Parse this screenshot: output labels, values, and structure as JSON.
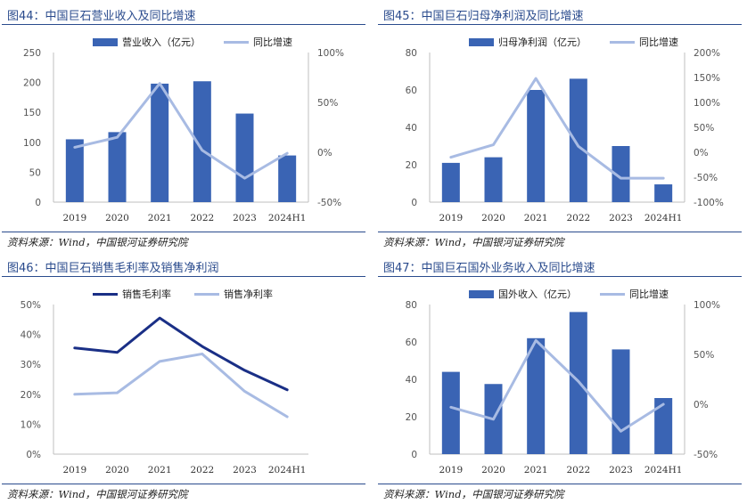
{
  "colors": {
    "bar": "#3a64b4",
    "line_light": "#a8bbe3",
    "line_dark": "#1a2f86",
    "title": "#2a4b8d"
  },
  "charts": [
    {
      "id": "c44",
      "title": "图44：中国巨石营业收入及同比增速",
      "source": "资料来源：Wind，中国银河证券研究院"
    },
    {
      "id": "c45",
      "title": "图45：中国巨石归母净利润及同比增速",
      "source": "资料来源：Wind，中国银河证券研究院"
    },
    {
      "id": "c46",
      "title": "图46：中国巨石销售毛利率及销售净利润",
      "source": "资料来源：Wind，中国银河证券研究院"
    },
    {
      "id": "c47",
      "title": "图47：中国巨石国外业务收入及同比增速",
      "source": "资料来源：Wind，中国银河证券研究院"
    }
  ],
  "chart_data": [
    {
      "type": "bar",
      "categories": [
        "2019",
        "2020",
        "2021",
        "2022",
        "2023",
        "2024H1"
      ],
      "series": [
        {
          "name": "营业收入（亿元）",
          "kind": "bar",
          "axis": "left",
          "values": [
            105,
            117,
            198,
            202,
            148,
            78
          ]
        },
        {
          "name": "同比增速",
          "kind": "line",
          "axis": "right",
          "values": [
            5,
            15,
            69,
            2,
            -26,
            -1
          ]
        }
      ],
      "ylim_left": [
        0,
        250
      ],
      "yticks_left": [
        "0",
        "50",
        "100",
        "150",
        "200",
        "250"
      ],
      "ylim_right": [
        -50,
        100
      ],
      "yticks_right": [
        "-50%",
        "0%",
        "50%",
        "100%"
      ],
      "grid": false,
      "legend": "top"
    },
    {
      "type": "bar",
      "categories": [
        "2019",
        "2020",
        "2021",
        "2022",
        "2023",
        "2024H1"
      ],
      "series": [
        {
          "name": "归母净利润（亿元）",
          "kind": "bar",
          "axis": "left",
          "values": [
            21,
            24,
            60,
            66,
            30,
            9.5
          ]
        },
        {
          "name": "同比增速",
          "kind": "line",
          "axis": "right",
          "values": [
            -10,
            15,
            148,
            12,
            -52,
            -52
          ]
        }
      ],
      "ylim_left": [
        0,
        80
      ],
      "yticks_left": [
        "0",
        "20",
        "40",
        "60",
        "80"
      ],
      "ylim_right": [
        -100,
        200
      ],
      "yticks_right": [
        "-100%",
        "-50%",
        "0%",
        "50%",
        "100%",
        "150%",
        "200%"
      ],
      "grid": false,
      "legend": "top"
    },
    {
      "type": "line",
      "categories": [
        "2019",
        "2020",
        "2021",
        "2022",
        "2023",
        "2024H1"
      ],
      "series": [
        {
          "name": "销售毛利率",
          "kind": "line",
          "style": "dark",
          "values": [
            35.5,
            34,
            45.5,
            36,
            28,
            21.5
          ]
        },
        {
          "name": "销售净利率",
          "kind": "line",
          "style": "light",
          "values": [
            20,
            20.5,
            31,
            33.5,
            21,
            12.5
          ]
        }
      ],
      "ylim": [
        0,
        50
      ],
      "yticks": [
        "0%",
        "10%",
        "20%",
        "30%",
        "40%",
        "50%"
      ],
      "grid": false,
      "legend": "top"
    },
    {
      "type": "bar",
      "categories": [
        "2019",
        "2020",
        "2021",
        "2022",
        "2023",
        "2024H1"
      ],
      "series": [
        {
          "name": "国外收入（亿元）",
          "kind": "bar",
          "axis": "left",
          "values": [
            44,
            37.5,
            62,
            76,
            56,
            30
          ]
        },
        {
          "name": "同比增速",
          "kind": "line",
          "axis": "right",
          "values": [
            -3,
            -15,
            64,
            23,
            -27,
            0
          ]
        }
      ],
      "ylim_left": [
        0,
        80
      ],
      "yticks_left": [
        "0",
        "20",
        "40",
        "60",
        "80"
      ],
      "ylim_right": [
        -50,
        100
      ],
      "yticks_right": [
        "-50%",
        "0%",
        "50%",
        "100%"
      ],
      "grid": false,
      "legend": "top"
    }
  ]
}
